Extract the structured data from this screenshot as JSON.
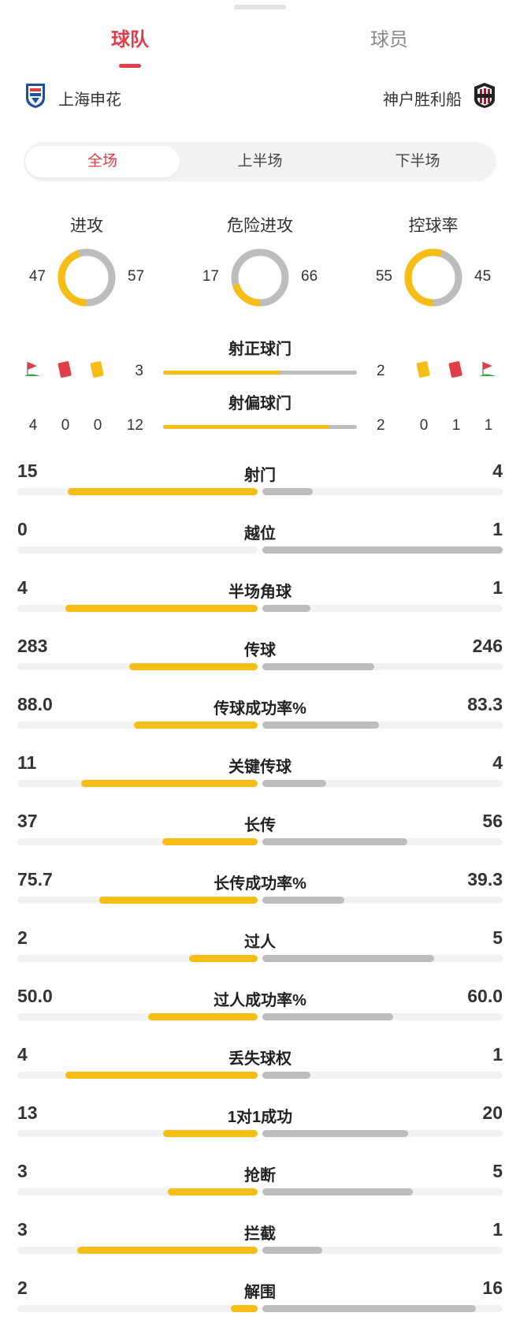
{
  "tabs": {
    "team": "球队",
    "player": "球员"
  },
  "teams": {
    "home": "上海申花",
    "away": "神户胜利船"
  },
  "periods": [
    "全场",
    "上半场",
    "下半场"
  ],
  "colors": {
    "accent": "#e23c48",
    "home": "#f6bd16",
    "away": "#bdbdbd"
  },
  "donuts": [
    {
      "title": "进攻",
      "left": "47",
      "right": "57",
      "home": 47,
      "away": 57
    },
    {
      "title": "危险进攻",
      "left": "17",
      "right": "66",
      "home": 17,
      "away": 66
    },
    {
      "title": "控球率",
      "left": "55",
      "right": "45",
      "home": 55,
      "away": 45
    }
  ],
  "shots_on": {
    "title": "射正球门",
    "left": "3",
    "right": "2",
    "home": 3,
    "away": 2
  },
  "shots_off": {
    "title": "射偏球门",
    "left": "12",
    "right": "2",
    "home": 12,
    "away": 2
  },
  "discipline": {
    "icons": [
      "corner-flag-icon",
      "red-card-icon",
      "yellow-card-icon"
    ],
    "home": [
      "4",
      "0",
      "0"
    ],
    "away": [
      "0",
      "1",
      "1"
    ]
  },
  "stats": [
    {
      "label": "射门",
      "left": "15",
      "right": "4",
      "home": 15,
      "away": 4
    },
    {
      "label": "越位",
      "left": "0",
      "right": "1",
      "home": 0,
      "away": 1
    },
    {
      "label": "半场角球",
      "left": "4",
      "right": "1",
      "home": 4,
      "away": 1
    },
    {
      "label": "传球",
      "left": "283",
      "right": "246",
      "home": 283,
      "away": 246
    },
    {
      "label": "传球成功率%",
      "left": "88.0",
      "right": "83.3",
      "home": 88.0,
      "away": 83.3
    },
    {
      "label": "关键传球",
      "left": "11",
      "right": "4",
      "home": 11,
      "away": 4
    },
    {
      "label": "长传",
      "left": "37",
      "right": "56",
      "home": 37,
      "away": 56
    },
    {
      "label": "长传成功率%",
      "left": "75.7",
      "right": "39.3",
      "home": 75.7,
      "away": 39.3
    },
    {
      "label": "过人",
      "left": "2",
      "right": "5",
      "home": 2,
      "away": 5
    },
    {
      "label": "过人成功率%",
      "left": "50.0",
      "right": "60.0",
      "home": 50.0,
      "away": 60.0
    },
    {
      "label": "丢失球权",
      "left": "4",
      "right": "1",
      "home": 4,
      "away": 1
    },
    {
      "label": "1对1成功",
      "left": "13",
      "right": "20",
      "home": 13,
      "away": 20
    },
    {
      "label": "抢断",
      "left": "3",
      "right": "5",
      "home": 3,
      "away": 5
    },
    {
      "label": "拦截",
      "left": "3",
      "right": "1",
      "home": 3,
      "away": 1
    },
    {
      "label": "解围",
      "left": "2",
      "right": "16",
      "home": 2,
      "away": 16
    }
  ]
}
